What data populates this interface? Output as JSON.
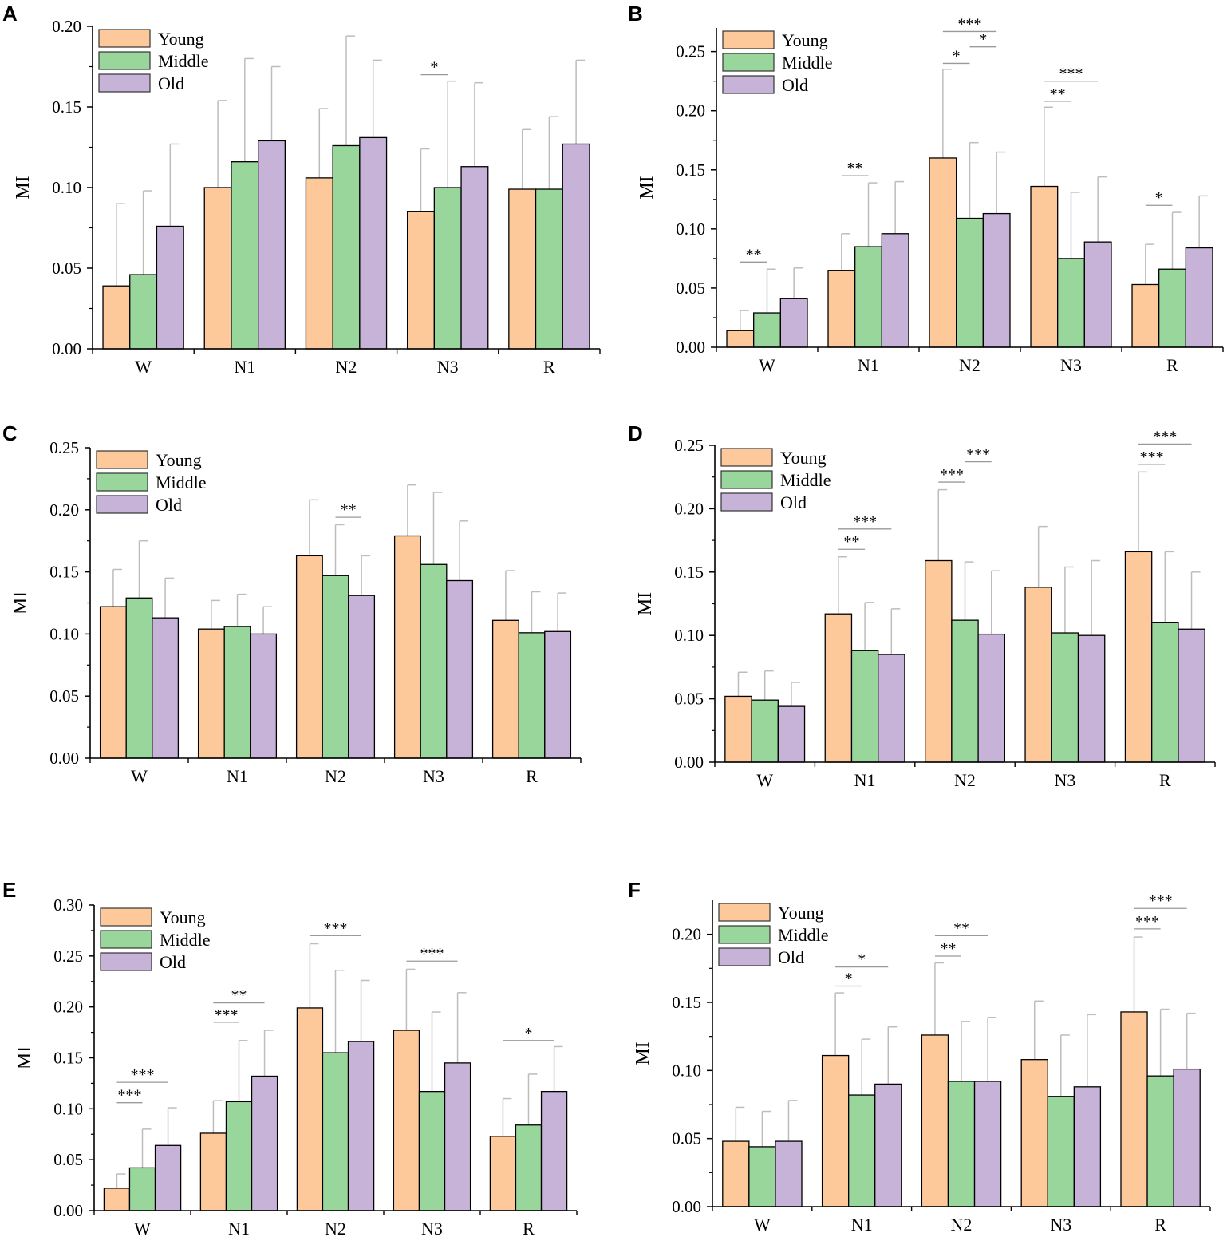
{
  "colors": {
    "Young": "#fdc99a",
    "Middle": "#99d69b",
    "Old": "#c7b2d8",
    "axis": "#000000",
    "error": "#bdbdbd",
    "sigline": "#9a9a9a"
  },
  "chart_data": [
    {
      "panel": "A",
      "type": "bar",
      "categories": [
        "W",
        "N1",
        "N2",
        "N3",
        "R"
      ],
      "ylabel": "MI",
      "ylim": [
        0,
        0.2
      ],
      "yticks": [
        "0.00",
        "0.05",
        "0.10",
        "0.15",
        "0.20"
      ],
      "series": [
        {
          "name": "Young",
          "values": [
            0.039,
            0.1,
            0.106,
            0.085,
            0.099
          ],
          "err": [
            0.09,
            0.154,
            0.149,
            0.124,
            0.136
          ]
        },
        {
          "name": "Middle",
          "values": [
            0.046,
            0.116,
            0.126,
            0.1,
            0.099
          ],
          "err": [
            0.098,
            0.18,
            0.194,
            0.166,
            0.144
          ]
        },
        {
          "name": "Old",
          "values": [
            0.076,
            0.129,
            0.131,
            0.113,
            0.127
          ],
          "err": [
            0.127,
            0.175,
            0.179,
            0.165,
            0.179
          ]
        }
      ],
      "annotations": [
        {
          "text": "*",
          "from": [
            3,
            0
          ],
          "to": [
            3,
            1
          ],
          "y": 0.17
        }
      ]
    },
    {
      "panel": "B",
      "type": "bar",
      "categories": [
        "W",
        "N1",
        "N2",
        "N3",
        "R"
      ],
      "ylabel": "MI",
      "ylim": [
        0,
        0.27
      ],
      "yticks": [
        "0.00",
        "0.05",
        "0.10",
        "0.15",
        "0.20",
        "0.25"
      ],
      "series": [
        {
          "name": "Young",
          "values": [
            0.014,
            0.065,
            0.16,
            0.136,
            0.053
          ],
          "err": [
            0.031,
            0.096,
            0.235,
            0.203,
            0.087
          ]
        },
        {
          "name": "Middle",
          "values": [
            0.029,
            0.085,
            0.109,
            0.075,
            0.066
          ],
          "err": [
            0.066,
            0.139,
            0.173,
            0.131,
            0.114
          ]
        },
        {
          "name": "Old",
          "values": [
            0.041,
            0.096,
            0.113,
            0.089,
            0.084
          ],
          "err": [
            0.067,
            0.14,
            0.165,
            0.144,
            0.128
          ]
        }
      ],
      "annotations": [
        {
          "text": "**",
          "from": [
            0,
            0
          ],
          "to": [
            0,
            1
          ],
          "y": 0.072
        },
        {
          "text": "**",
          "from": [
            1,
            0
          ],
          "to": [
            1,
            1
          ],
          "y": 0.145
        },
        {
          "text": "*",
          "from": [
            2,
            0
          ],
          "to": [
            2,
            1
          ],
          "y": 0.24
        },
        {
          "text": "*",
          "from": [
            2,
            1
          ],
          "to": [
            2,
            2
          ],
          "y": 0.254
        },
        {
          "text": "***",
          "from": [
            2,
            0
          ],
          "to": [
            2,
            2
          ],
          "y": 0.267
        },
        {
          "text": "**",
          "from": [
            3,
            0
          ],
          "to": [
            3,
            1
          ],
          "y": 0.208
        },
        {
          "text": "***",
          "from": [
            3,
            0
          ],
          "to": [
            3,
            2
          ],
          "y": 0.225
        },
        {
          "text": "*",
          "from": [
            4,
            0
          ],
          "to": [
            4,
            1
          ],
          "y": 0.12
        }
      ]
    },
    {
      "panel": "C",
      "type": "bar",
      "categories": [
        "W",
        "N1",
        "N2",
        "N3",
        "R"
      ],
      "ylabel": "MI",
      "ylim": [
        0,
        0.25
      ],
      "yticks": [
        "0.00",
        "0.05",
        "0.10",
        "0.15",
        "0.20",
        "0.25"
      ],
      "series": [
        {
          "name": "Young",
          "values": [
            0.122,
            0.104,
            0.163,
            0.179,
            0.111
          ],
          "err": [
            0.152,
            0.127,
            0.208,
            0.22,
            0.151
          ]
        },
        {
          "name": "Middle",
          "values": [
            0.129,
            0.106,
            0.147,
            0.156,
            0.101
          ],
          "err": [
            0.175,
            0.132,
            0.188,
            0.214,
            0.134
          ]
        },
        {
          "name": "Old",
          "values": [
            0.113,
            0.1,
            0.131,
            0.143,
            0.102
          ],
          "err": [
            0.145,
            0.122,
            0.163,
            0.191,
            0.133
          ]
        }
      ],
      "annotations": [
        {
          "text": "**",
          "from": [
            2,
            1
          ],
          "to": [
            2,
            2
          ],
          "y": 0.194
        }
      ]
    },
    {
      "panel": "D",
      "type": "bar",
      "categories": [
        "W",
        "N1",
        "N2",
        "N3",
        "R"
      ],
      "ylabel": "MI",
      "ylim": [
        0,
        0.25
      ],
      "yticks": [
        "0.00",
        "0.05",
        "0.10",
        "0.15",
        "0.20",
        "0.25"
      ],
      "series": [
        {
          "name": "Young",
          "values": [
            0.052,
            0.117,
            0.159,
            0.138,
            0.166
          ],
          "err": [
            0.071,
            0.162,
            0.215,
            0.186,
            0.229
          ]
        },
        {
          "name": "Middle",
          "values": [
            0.049,
            0.088,
            0.112,
            0.102,
            0.11
          ],
          "err": [
            0.072,
            0.126,
            0.158,
            0.154,
            0.166
          ]
        },
        {
          "name": "Old",
          "values": [
            0.044,
            0.085,
            0.101,
            0.1,
            0.105
          ],
          "err": [
            0.063,
            0.121,
            0.151,
            0.159,
            0.15
          ]
        }
      ],
      "annotations": [
        {
          "text": "**",
          "from": [
            1,
            0
          ],
          "to": [
            1,
            1
          ],
          "y": 0.168
        },
        {
          "text": "***",
          "from": [
            1,
            0
          ],
          "to": [
            1,
            2
          ],
          "y": 0.184
        },
        {
          "text": "***",
          "from": [
            2,
            0
          ],
          "to": [
            2,
            1
          ],
          "y": 0.221
        },
        {
          "text": "***",
          "from": [
            2,
            1
          ],
          "to": [
            2,
            2
          ],
          "y": 0.237
        },
        {
          "text": "***",
          "from": [
            4,
            0
          ],
          "to": [
            4,
            1
          ],
          "y": 0.235
        },
        {
          "text": "***",
          "from": [
            4,
            0
          ],
          "to": [
            4,
            2
          ],
          "y": 0.251
        }
      ]
    },
    {
      "panel": "E",
      "type": "bar",
      "categories": [
        "W",
        "N1",
        "N2",
        "N3",
        "R"
      ],
      "ylabel": "MI",
      "ylim": [
        0,
        0.3
      ],
      "yticks": [
        "0.00",
        "0.05",
        "0.10",
        "0.15",
        "0.20",
        "0.25",
        "0.30"
      ],
      "series": [
        {
          "name": "Young",
          "values": [
            0.022,
            0.076,
            0.199,
            0.177,
            0.073
          ],
          "err": [
            0.036,
            0.108,
            0.262,
            0.237,
            0.11
          ]
        },
        {
          "name": "Middle",
          "values": [
            0.042,
            0.107,
            0.155,
            0.117,
            0.084
          ],
          "err": [
            0.08,
            0.167,
            0.236,
            0.195,
            0.134
          ]
        },
        {
          "name": "Old",
          "values": [
            0.064,
            0.132,
            0.166,
            0.145,
            0.117
          ],
          "err": [
            0.101,
            0.177,
            0.226,
            0.214,
            0.161
          ]
        }
      ],
      "annotations": [
        {
          "text": "***",
          "from": [
            0,
            0
          ],
          "to": [
            0,
            1
          ],
          "y": 0.106
        },
        {
          "text": "***",
          "from": [
            0,
            0
          ],
          "to": [
            0,
            2
          ],
          "y": 0.126
        },
        {
          "text": "***",
          "from": [
            1,
            0
          ],
          "to": [
            1,
            1
          ],
          "y": 0.185
        },
        {
          "text": "**",
          "from": [
            1,
            0
          ],
          "to": [
            1,
            2
          ],
          "y": 0.204
        },
        {
          "text": "***",
          "from": [
            2,
            0
          ],
          "to": [
            2,
            2
          ],
          "y": 0.27
        },
        {
          "text": "***",
          "from": [
            3,
            0
          ],
          "to": [
            3,
            2
          ],
          "y": 0.245
        },
        {
          "text": "*",
          "from": [
            4,
            0
          ],
          "to": [
            4,
            2
          ],
          "y": 0.167
        }
      ]
    },
    {
      "panel": "F",
      "type": "bar",
      "categories": [
        "W",
        "N1",
        "N2",
        "N3",
        "R"
      ],
      "ylabel": "MI",
      "ylim": [
        0,
        0.225
      ],
      "yticks": [
        "0.00",
        "0.05",
        "0.10",
        "0.15",
        "0.20"
      ],
      "series": [
        {
          "name": "Young",
          "values": [
            0.048,
            0.111,
            0.126,
            0.108,
            0.143
          ],
          "err": [
            0.073,
            0.157,
            0.179,
            0.151,
            0.198
          ]
        },
        {
          "name": "Middle",
          "values": [
            0.044,
            0.082,
            0.092,
            0.081,
            0.096
          ],
          "err": [
            0.07,
            0.123,
            0.136,
            0.126,
            0.145
          ]
        },
        {
          "name": "Old",
          "values": [
            0.048,
            0.09,
            0.092,
            0.088,
            0.101
          ],
          "err": [
            0.078,
            0.132,
            0.139,
            0.141,
            0.142
          ]
        }
      ],
      "annotations": [
        {
          "text": "*",
          "from": [
            1,
            0
          ],
          "to": [
            1,
            1
          ],
          "y": 0.162
        },
        {
          "text": "*",
          "from": [
            1,
            0
          ],
          "to": [
            1,
            2
          ],
          "y": 0.176
        },
        {
          "text": "**",
          "from": [
            2,
            0
          ],
          "to": [
            2,
            1
          ],
          "y": 0.184
        },
        {
          "text": "**",
          "from": [
            2,
            0
          ],
          "to": [
            2,
            2
          ],
          "y": 0.199
        },
        {
          "text": "***",
          "from": [
            4,
            0
          ],
          "to": [
            4,
            1
          ],
          "y": 0.204
        },
        {
          "text": "***",
          "from": [
            4,
            0
          ],
          "to": [
            4,
            2
          ],
          "y": 0.219
        }
      ]
    }
  ]
}
